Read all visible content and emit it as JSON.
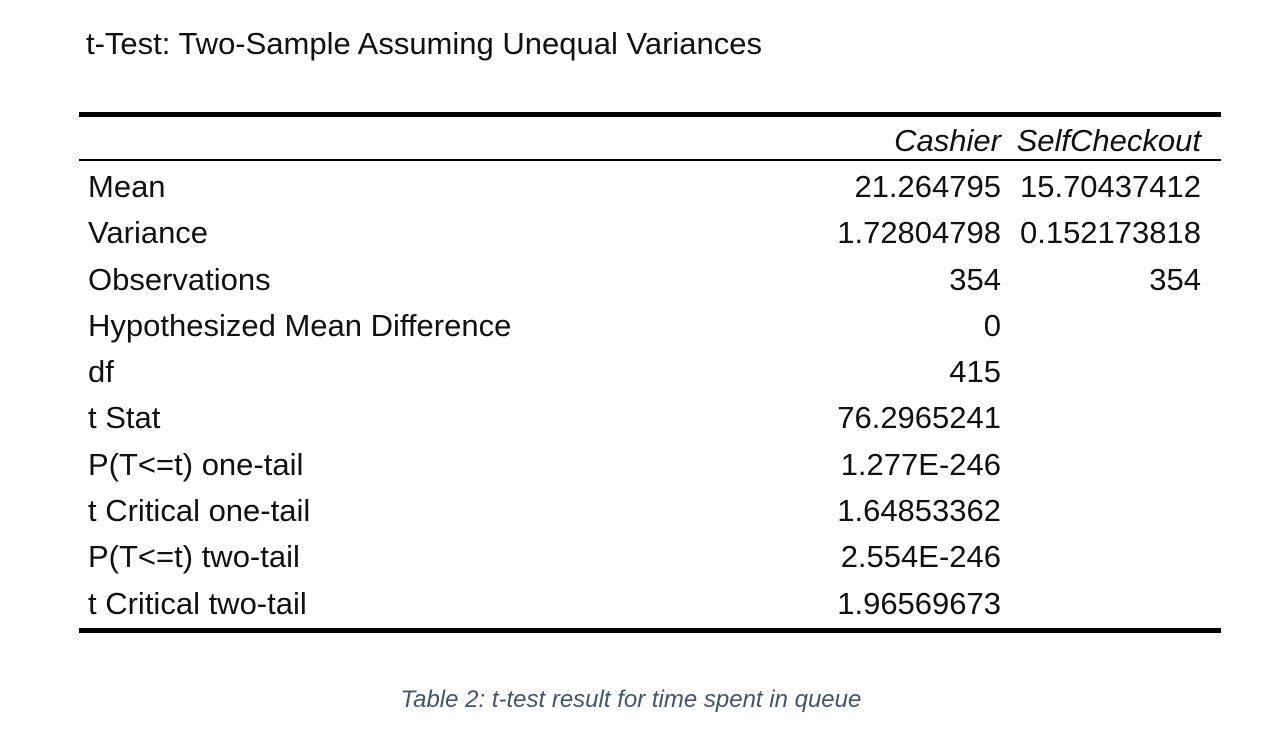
{
  "title": "t-Test: Two-Sample Assuming Unequal Variances",
  "columns": [
    "Cashier",
    "SelfCheckout"
  ],
  "rows": [
    {
      "label": "Mean",
      "cashier": "21.264795",
      "self": "15.70437412"
    },
    {
      "label": "Variance",
      "cashier": "1.72804798",
      "self": "0.152173818"
    },
    {
      "label": "Observations",
      "cashier": "354",
      "self": "354"
    },
    {
      "label": "Hypothesized Mean Difference",
      "cashier": "0",
      "self": ""
    },
    {
      "label": "df",
      "cashier": "415",
      "self": ""
    },
    {
      "label": "t Stat",
      "cashier": "76.2965241",
      "self": ""
    },
    {
      "label": "P(T<=t) one-tail",
      "cashier": "1.277E-246",
      "self": ""
    },
    {
      "label": "t Critical one-tail",
      "cashier": "1.64853362",
      "self": ""
    },
    {
      "label": "P(T<=t) two-tail",
      "cashier": "2.554E-246",
      "self": ""
    },
    {
      "label": "t Critical two-tail",
      "cashier": "1.96569673",
      "self": ""
    }
  ],
  "caption": "Table 2: t-test result for time spent in queue",
  "colors": {
    "caption": "#44546a",
    "rule": "#000000"
  }
}
